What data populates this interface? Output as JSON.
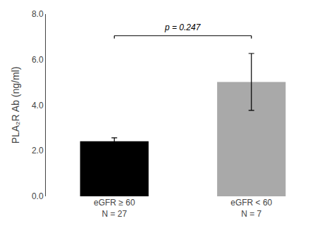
{
  "chart_data": {
    "type": "bar",
    "categories": [
      "eGFR ≥ 60\nN = 27",
      "eGFR < 60\nN = 7"
    ],
    "values": [
      2.42,
      5.02
    ],
    "errors": [
      0.15,
      1.25
    ],
    "colors": [
      "#000000",
      "#a9a9a9"
    ],
    "ylabel": "PLA₂R Ab (ng/ml)",
    "ylim": [
      0.0,
      8.0
    ],
    "yticks": [
      {
        "value": 0.0,
        "label": "0.0"
      },
      {
        "value": 2.0,
        "label": "2.0"
      },
      {
        "value": 4.0,
        "label": "4.0"
      },
      {
        "value": 6.0,
        "label": "6.0"
      },
      {
        "value": 8.0,
        "label": "8.0"
      }
    ],
    "significance": {
      "text": "p = 0.247",
      "line_y": 7.05,
      "text_y": 7.15
    },
    "grid": false
  }
}
